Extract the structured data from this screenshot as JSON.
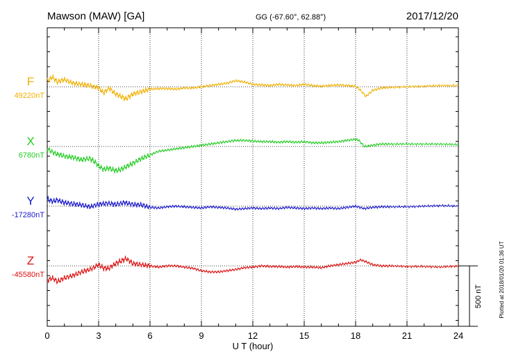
{
  "header": {
    "station": "Mawson (MAW)  [GA]",
    "coords": "GG (-67.60°,  62.88°)",
    "date": "2017/12/20"
  },
  "footer": {
    "plotted": "Plotted at 2018/01/20 01:36 UT"
  },
  "chart_data": {
    "type": "line",
    "xlabel": "U T (hour)",
    "xlim": [
      0,
      24
    ],
    "xticks": [
      "0",
      "3",
      "6",
      "9",
      "12",
      "15",
      "18",
      "21",
      "24"
    ],
    "scale_bar": {
      "label": "500 nT",
      "value_nT": 500
    },
    "grid": true,
    "series": [
      {
        "name": "F",
        "baseline_label": "49220nT",
        "baseline": 49220,
        "color": "#f0b000",
        "x": [
          0,
          0.3,
          0.6,
          1.0,
          1.5,
          2.0,
          2.5,
          3.0,
          3.3,
          3.6,
          4.0,
          4.3,
          4.6,
          5.0,
          5.5,
          6.0,
          6.5,
          7.0,
          7.5,
          8.0,
          8.5,
          9.0,
          9.5,
          10.0,
          10.5,
          11.0,
          11.5,
          12.0,
          12.5,
          13.0,
          13.5,
          14.0,
          14.5,
          15.0,
          15.5,
          16.0,
          16.5,
          17.0,
          17.5,
          18.0,
          18.3,
          18.6,
          19.0,
          19.5,
          20.0,
          21.0,
          22.0,
          23.0,
          24.0
        ],
        "y": [
          49270,
          49300,
          49260,
          49280,
          49250,
          49240,
          49230,
          49210,
          49170,
          49210,
          49160,
          49140,
          49120,
          49160,
          49180,
          49200,
          49205,
          49205,
          49200,
          49210,
          49210,
          49220,
          49230,
          49240,
          49250,
          49270,
          49260,
          49240,
          49235,
          49230,
          49240,
          49235,
          49230,
          49240,
          49230,
          49225,
          49230,
          49235,
          49230,
          49225,
          49190,
          49140,
          49190,
          49210,
          49215,
          49220,
          49225,
          49230,
          49230
        ]
      },
      {
        "name": "X",
        "baseline_label": "6780nT",
        "baseline": 6780,
        "color": "#22cc22",
        "x": [
          0,
          0.5,
          1.0,
          1.5,
          2.0,
          2.5,
          2.8,
          3.0,
          3.3,
          3.6,
          4.0,
          4.3,
          4.7,
          5.0,
          5.5,
          6.0,
          6.5,
          7.0,
          7.5,
          8.0,
          8.5,
          9.0,
          9.5,
          10.0,
          10.5,
          11.0,
          11.5,
          12.0,
          12.5,
          13.0,
          13.5,
          14.0,
          14.5,
          15.0,
          15.5,
          16.0,
          16.5,
          17.0,
          17.5,
          18.0,
          18.2,
          18.5,
          19.0,
          19.5,
          20.0,
          21.0,
          22.0,
          23.0,
          24.0
        ],
        "y": [
          6760,
          6720,
          6700,
          6690,
          6670,
          6680,
          6650,
          6620,
          6590,
          6600,
          6580,
          6590,
          6620,
          6640,
          6680,
          6710,
          6740,
          6750,
          6760,
          6770,
          6780,
          6790,
          6800,
          6810,
          6820,
          6830,
          6830,
          6825,
          6820,
          6820,
          6815,
          6820,
          6815,
          6820,
          6810,
          6810,
          6815,
          6820,
          6830,
          6840,
          6830,
          6780,
          6790,
          6800,
          6800,
          6800,
          6800,
          6800,
          6795
        ]
      },
      {
        "name": "Y",
        "baseline_label": "-17280nT",
        "baseline": -17280,
        "color": "#1818cc",
        "x": [
          0,
          0.3,
          0.6,
          1.0,
          1.5,
          2.0,
          2.5,
          3.0,
          3.5,
          4.0,
          4.5,
          5.0,
          5.5,
          6.0,
          6.5,
          7.0,
          7.5,
          8.0,
          8.5,
          9.0,
          9.5,
          10.0,
          10.5,
          11.0,
          11.5,
          12.0,
          12.5,
          13.0,
          13.5,
          14.0,
          14.5,
          15.0,
          15.5,
          16.0,
          16.5,
          17.0,
          17.5,
          18.0,
          18.5,
          19.0,
          19.5,
          20.0,
          21.0,
          22.0,
          23.0,
          24.0
        ],
        "y": [
          -17220,
          -17240,
          -17230,
          -17250,
          -17260,
          -17270,
          -17285,
          -17265,
          -17255,
          -17265,
          -17250,
          -17265,
          -17270,
          -17290,
          -17295,
          -17285,
          -17280,
          -17285,
          -17290,
          -17295,
          -17285,
          -17290,
          -17295,
          -17305,
          -17300,
          -17295,
          -17300,
          -17295,
          -17300,
          -17290,
          -17295,
          -17300,
          -17295,
          -17300,
          -17295,
          -17300,
          -17290,
          -17280,
          -17300,
          -17290,
          -17285,
          -17285,
          -17285,
          -17280,
          -17275,
          -17280
        ]
      },
      {
        "name": "Z",
        "baseline_label": "-45580nT",
        "baseline": -45580,
        "color": "#dd1111",
        "x": [
          0,
          0.3,
          0.6,
          1.0,
          1.5,
          2.0,
          2.5,
          3.0,
          3.3,
          3.6,
          4.0,
          4.3,
          4.6,
          5.0,
          5.5,
          6.0,
          6.5,
          7.0,
          7.5,
          8.0,
          8.5,
          9.0,
          9.5,
          10.0,
          10.5,
          11.0,
          11.5,
          12.0,
          12.5,
          13.0,
          13.5,
          14.0,
          14.5,
          15.0,
          15.5,
          16.0,
          16.5,
          17.0,
          17.5,
          18.0,
          18.3,
          18.6,
          19.0,
          19.5,
          20.0,
          21.0,
          22.0,
          23.0,
          24.0
        ],
        "y": [
          -45700,
          -45680,
          -45710,
          -45680,
          -45660,
          -45630,
          -45610,
          -45570,
          -45600,
          -45600,
          -45560,
          -45540,
          -45520,
          -45560,
          -45570,
          -45580,
          -45590,
          -45580,
          -45580,
          -45590,
          -45600,
          -45620,
          -45630,
          -45630,
          -45620,
          -45610,
          -45595,
          -45590,
          -45580,
          -45585,
          -45585,
          -45590,
          -45585,
          -45590,
          -45590,
          -45595,
          -45580,
          -45570,
          -45560,
          -45550,
          -45530,
          -45545,
          -45570,
          -45580,
          -45580,
          -45585,
          -45585,
          -45590,
          -45580
        ]
      }
    ]
  }
}
